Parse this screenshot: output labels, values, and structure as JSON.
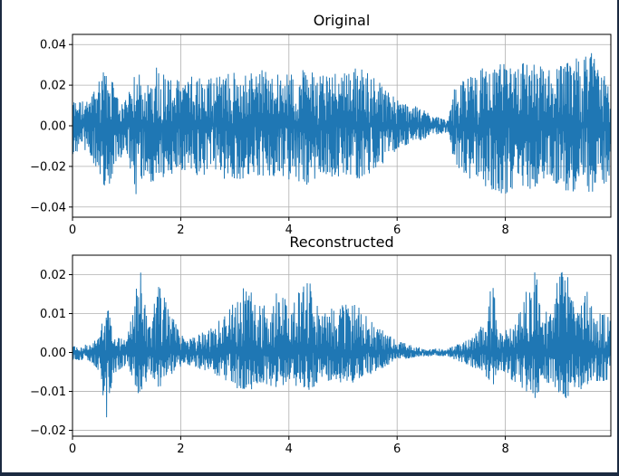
{
  "colors": {
    "line": "#1f77b4",
    "grid": "#b0b0b0",
    "background": "#ffffff",
    "frame": "#1b2a41"
  },
  "chart_data": [
    {
      "type": "line",
      "title": "Original",
      "xlabel": "",
      "ylabel": "",
      "xlim": [
        0,
        9.95
      ],
      "ylim": [
        -0.045,
        0.045
      ],
      "grid": true,
      "x_ticks": [
        0,
        2,
        4,
        6,
        8
      ],
      "y_ticks": [
        0.04,
        0.02,
        0.0,
        -0.02,
        -0.04
      ],
      "x_tick_labels": [
        "0",
        "2",
        "4",
        "6",
        "8"
      ],
      "y_tick_labels": [
        "0.04",
        "0.02",
        "0.00",
        "−0.02",
        "−0.04"
      ],
      "envelope": {
        "t": [
          0,
          0.3,
          0.5,
          0.65,
          0.8,
          1.0,
          1.2,
          1.35,
          1.5,
          1.65,
          1.8,
          2.0,
          2.3,
          2.6,
          2.9,
          3.2,
          3.5,
          3.9,
          4.2,
          4.6,
          5.0,
          5.3,
          5.6,
          6.0,
          6.4,
          6.8,
          6.95,
          7.05,
          7.3,
          7.6,
          8.0,
          8.4,
          8.8,
          9.2,
          9.5,
          9.7,
          9.95
        ],
        "upper": [
          0.013,
          0.012,
          0.025,
          0.032,
          0.015,
          0.013,
          0.029,
          0.018,
          0.031,
          0.028,
          0.024,
          0.022,
          0.026,
          0.025,
          0.027,
          0.026,
          0.028,
          0.025,
          0.028,
          0.026,
          0.028,
          0.029,
          0.024,
          0.013,
          0.009,
          0.004,
          0.003,
          0.018,
          0.024,
          0.029,
          0.031,
          0.033,
          0.028,
          0.032,
          0.041,
          0.03,
          0.021
        ],
        "lower": [
          -0.014,
          -0.013,
          -0.025,
          -0.033,
          -0.018,
          -0.015,
          -0.04,
          -0.022,
          -0.031,
          -0.026,
          -0.024,
          -0.022,
          -0.026,
          -0.024,
          -0.028,
          -0.026,
          -0.027,
          -0.026,
          -0.03,
          -0.027,
          -0.026,
          -0.026,
          -0.023,
          -0.012,
          -0.008,
          -0.004,
          -0.003,
          -0.018,
          -0.026,
          -0.03,
          -0.034,
          -0.032,
          -0.028,
          -0.033,
          -0.032,
          -0.036,
          -0.024
        ]
      }
    },
    {
      "type": "line",
      "title": "Reconstructed",
      "xlabel": "",
      "ylabel": "",
      "xlim": [
        0,
        9.95
      ],
      "ylim": [
        -0.0215,
        0.025
      ],
      "grid": true,
      "x_ticks": [
        0,
        2,
        4,
        6,
        8
      ],
      "y_ticks": [
        0.02,
        0.01,
        0.0,
        -0.01,
        -0.02
      ],
      "x_tick_labels": [
        "0",
        "2",
        "4",
        "6",
        "8"
      ],
      "y_tick_labels": [
        "0.02",
        "0.01",
        "0.00",
        "−0.01",
        "−0.02"
      ],
      "envelope": {
        "t": [
          0,
          0.3,
          0.5,
          0.62,
          0.75,
          1.0,
          1.25,
          1.4,
          1.6,
          1.85,
          2.1,
          2.5,
          2.6,
          2.9,
          3.2,
          3.5,
          3.8,
          4.1,
          4.3,
          4.6,
          5.0,
          5.3,
          5.6,
          6.0,
          6.5,
          6.9,
          7.1,
          7.4,
          7.6,
          7.75,
          7.9,
          8.2,
          8.55,
          8.7,
          8.9,
          9.1,
          9.3,
          9.5,
          9.7,
          9.95
        ],
        "upper": [
          0.002,
          0.002,
          0.004,
          0.014,
          0.005,
          0.003,
          0.022,
          0.006,
          0.018,
          0.009,
          0.003,
          0.006,
          0.007,
          0.011,
          0.018,
          0.012,
          0.016,
          0.013,
          0.022,
          0.01,
          0.013,
          0.012,
          0.007,
          0.003,
          0.001,
          0.001,
          0.002,
          0.004,
          0.008,
          0.019,
          0.005,
          0.008,
          0.023,
          0.008,
          0.017,
          0.023,
          0.011,
          0.016,
          0.011,
          0.009
        ],
        "lower": [
          -0.002,
          -0.002,
          -0.005,
          -0.019,
          -0.006,
          -0.003,
          -0.012,
          -0.006,
          -0.009,
          -0.006,
          -0.003,
          -0.005,
          -0.006,
          -0.008,
          -0.011,
          -0.008,
          -0.009,
          -0.008,
          -0.012,
          -0.007,
          -0.008,
          -0.008,
          -0.005,
          -0.002,
          -0.001,
          -0.001,
          -0.002,
          -0.004,
          -0.005,
          -0.009,
          -0.005,
          -0.008,
          -0.012,
          -0.008,
          -0.009,
          -0.012,
          -0.01,
          -0.009,
          -0.008,
          -0.007
        ]
      }
    }
  ]
}
